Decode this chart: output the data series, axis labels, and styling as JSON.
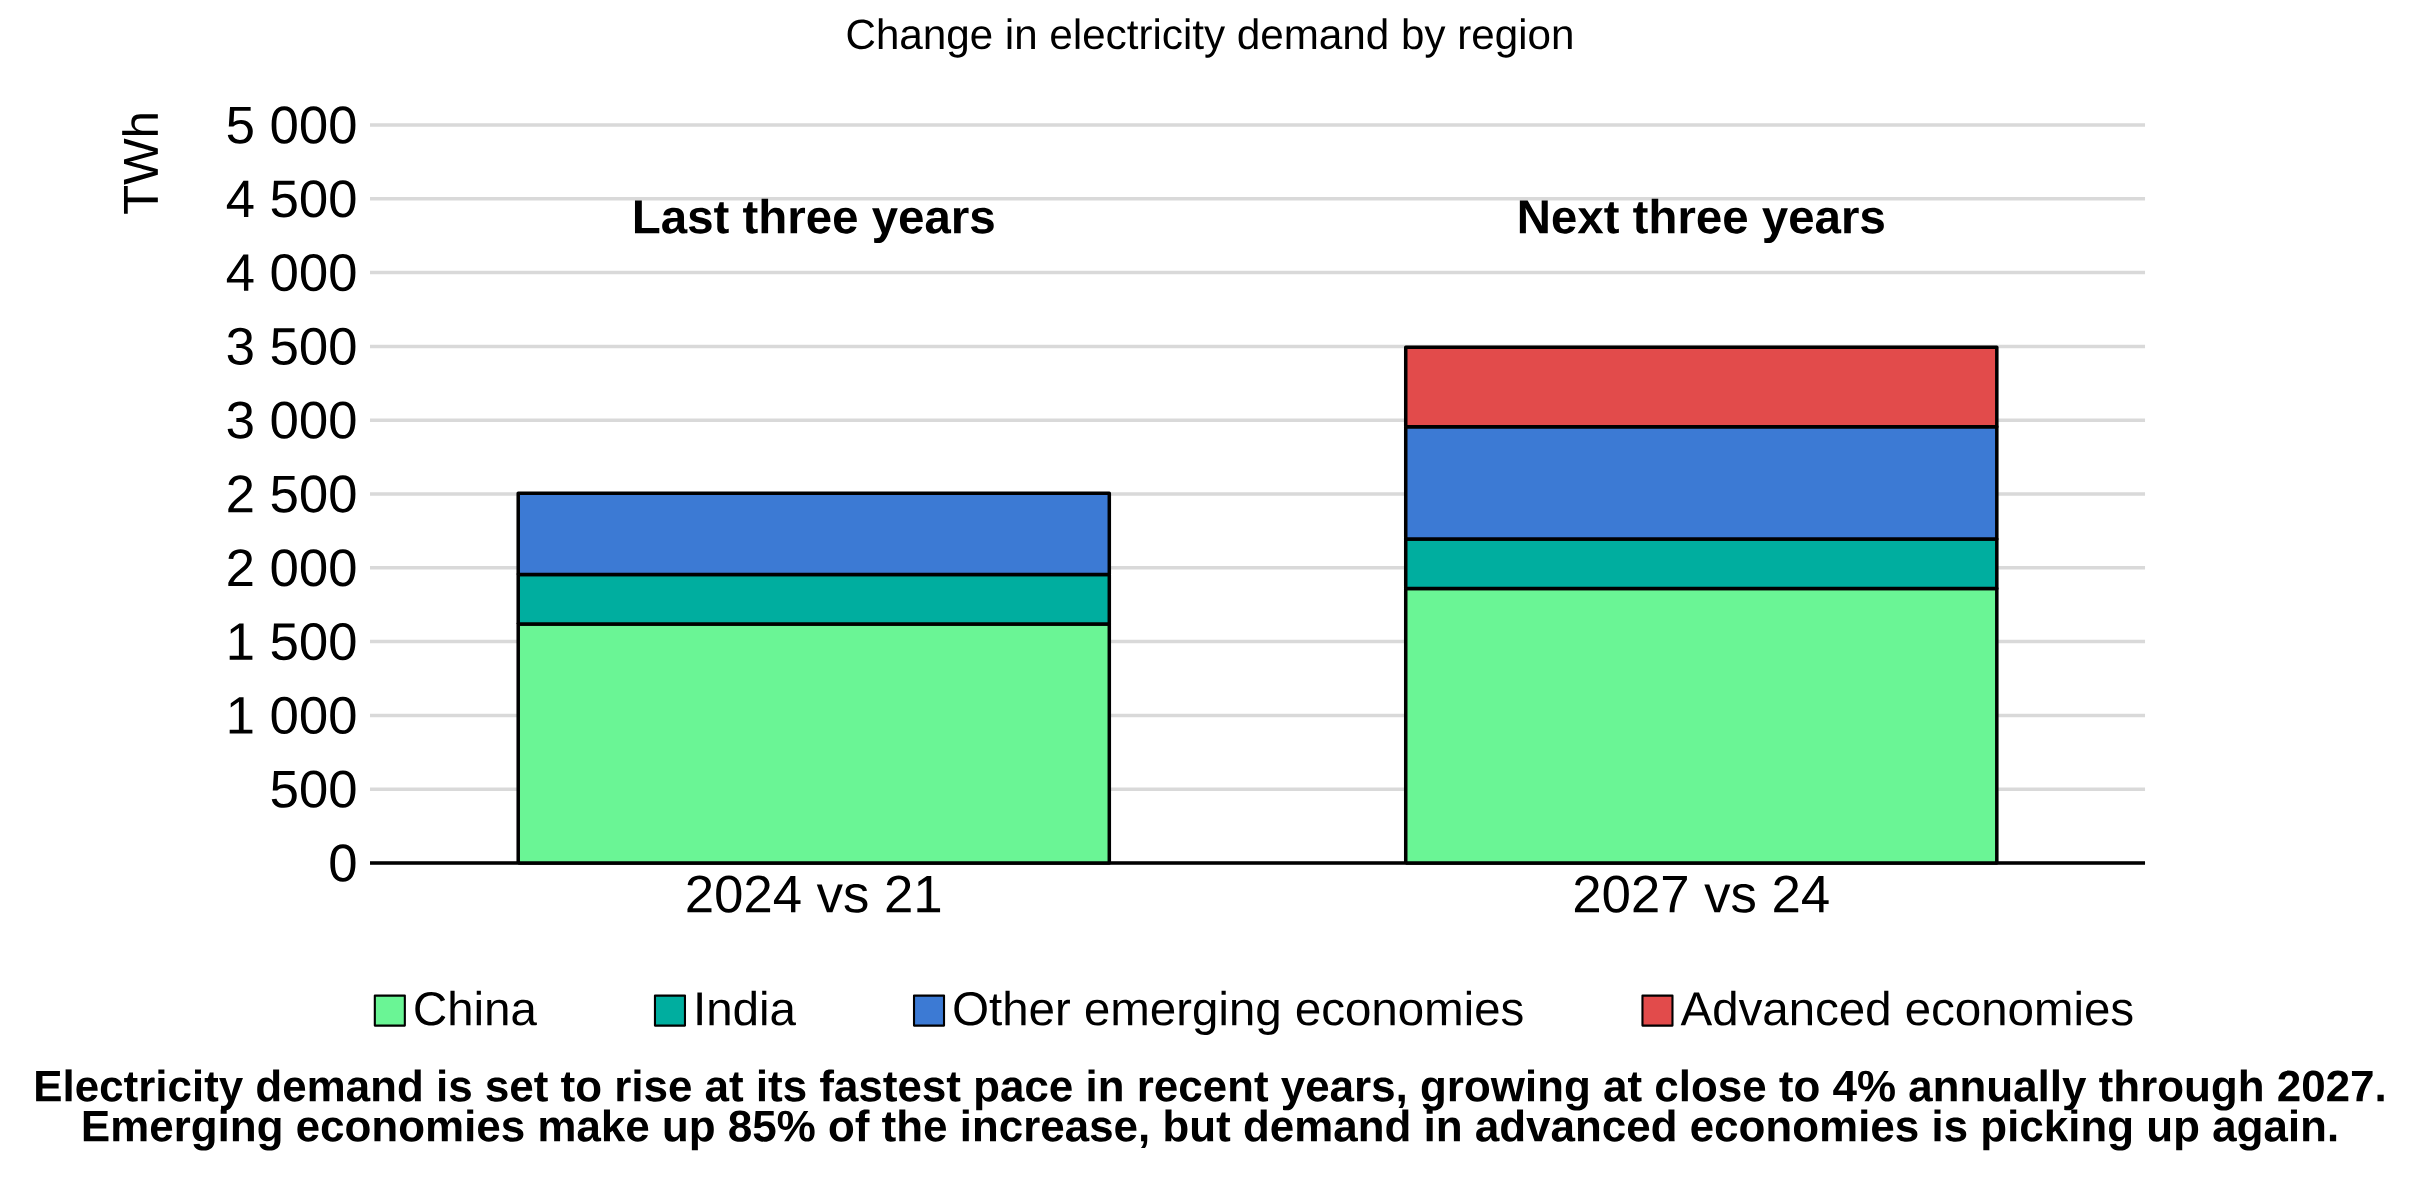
{
  "chart_data": {
    "type": "bar",
    "stacked": true,
    "title": "Change in electricity demand by region",
    "ylabel": "TWh",
    "categories": [
      "2024 vs 21",
      "2027 vs 24"
    ],
    "series": [
      {
        "name": "China",
        "color": "#6af595",
        "values": [
          1620,
          1860
        ]
      },
      {
        "name": "India",
        "color": "#00ae9f",
        "values": [
          335,
          335
        ]
      },
      {
        "name": "Other emerging economies",
        "color": "#3c7ad4",
        "values": [
          550,
          760
        ]
      },
      {
        "name": "Advanced economies",
        "color": "#e24b4b",
        "values": [
          null,
          540
        ]
      }
    ],
    "ylim": [
      0,
      5000
    ],
    "yticks": [
      0,
      500,
      {
        "value": 1000,
        "label": "1 000"
      },
      {
        "value": 1500,
        "label": "1 500"
      },
      {
        "value": 2000,
        "label": "2 000"
      },
      {
        "value": 2500,
        "label": "2 500"
      },
      {
        "value": 3000,
        "label": "3 000"
      },
      {
        "value": 3500,
        "label": "3 500"
      },
      {
        "value": 4000,
        "label": "4 000"
      },
      {
        "value": 4500,
        "label": "4 500"
      },
      {
        "value": 5000,
        "label": "5 000"
      }
    ],
    "grid": "y",
    "legend": "bottom",
    "annotations": [
      "Last three years",
      "Next three years",
      "Electricity demand is set to rise at its fastest pace in recent years, growing at close to 4% annually through 2027.",
      "Emerging economies make up 85% of the increase,  but demand in advanced economies is picking up again."
    ]
  }
}
